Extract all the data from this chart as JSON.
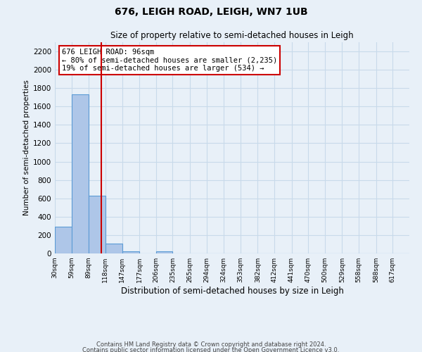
{
  "title": "676, LEIGH ROAD, LEIGH, WN7 1UB",
  "subtitle": "Size of property relative to semi-detached houses in Leigh",
  "xlabel": "Distribution of semi-detached houses by size in Leigh",
  "ylabel": "Number of semi-detached properties",
  "bin_labels": [
    "30sqm",
    "59sqm",
    "89sqm",
    "118sqm",
    "147sqm",
    "177sqm",
    "206sqm",
    "235sqm",
    "265sqm",
    "294sqm",
    "324sqm",
    "353sqm",
    "382sqm",
    "412sqm",
    "441sqm",
    "470sqm",
    "500sqm",
    "529sqm",
    "558sqm",
    "588sqm",
    "617sqm"
  ],
  "bin_edges": [
    15,
    44,
    74,
    103,
    132,
    162,
    191,
    220,
    250,
    279,
    309,
    338,
    368,
    397,
    427,
    456,
    485,
    515,
    544,
    574,
    603,
    632
  ],
  "bar_values": [
    290,
    1730,
    630,
    110,
    25,
    0,
    25,
    0,
    0,
    0,
    0,
    0,
    0,
    0,
    0,
    0,
    0,
    0,
    0,
    0,
    0
  ],
  "bar_color": "#aec6e8",
  "bar_edge_color": "#5b9bd5",
  "property_size": 96,
  "property_line_color": "#cc0000",
  "annotation_text": "676 LEIGH ROAD: 96sqm\n← 80% of semi-detached houses are smaller (2,235)\n19% of semi-detached houses are larger (534) →",
  "annotation_box_color": "#ffffff",
  "annotation_box_edge": "#cc0000",
  "ylim": [
    0,
    2300
  ],
  "yticks": [
    0,
    200,
    400,
    600,
    800,
    1000,
    1200,
    1400,
    1600,
    1800,
    2000,
    2200
  ],
  "grid_color": "#c8daea",
  "background_color": "#e8f0f8",
  "footnote1": "Contains HM Land Registry data © Crown copyright and database right 2024.",
  "footnote2": "Contains public sector information licensed under the Open Government Licence v3.0."
}
